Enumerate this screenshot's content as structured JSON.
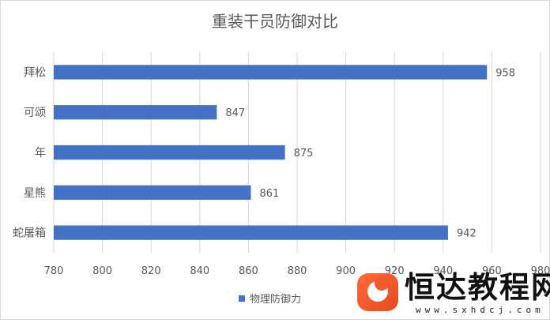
{
  "chart_data": {
    "type": "bar",
    "orientation": "horizontal",
    "title": "重装干员防御对比",
    "categories": [
      "拜松",
      "可颂",
      "年",
      "星熊",
      "蛇屠箱"
    ],
    "series": [
      {
        "name": "物理防御力",
        "values": [
          958,
          847,
          875,
          861,
          942
        ],
        "color": "#4472c4"
      }
    ],
    "xlim": [
      780,
      960
    ],
    "xticks": [
      780,
      800,
      820,
      840,
      860,
      880,
      900,
      920,
      940,
      960,
      980
    ],
    "x_tick_labels": [
      "780",
      "800",
      "820",
      "840",
      "860",
      "880",
      "900",
      "920",
      "940",
      "960",
      "980"
    ],
    "grid": true,
    "legend_position": "bottom",
    "data_labels": true
  },
  "watermark": {
    "text": "恒达教程网",
    "url": "www.sxhdcj.com",
    "logo_icon": "whale-tail-icon"
  },
  "colors": {
    "bar": "#4472c4",
    "grid": "#d9d9d9",
    "text": "#595959",
    "title": "#595959"
  }
}
